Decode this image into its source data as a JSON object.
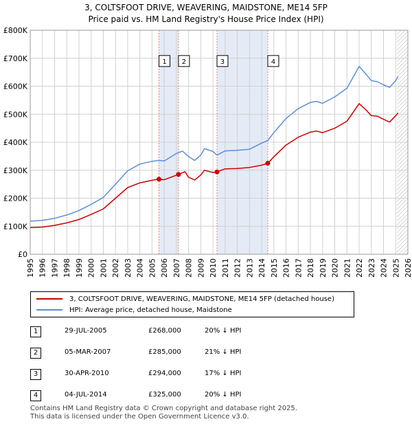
{
  "title_line1": "3, COLTSFOOT DRIVE, WEAVERING, MAIDSTONE, ME14 5FP",
  "title_line2": "Price paid vs. HM Land Registry's House Price Index (HPI)",
  "colors": {
    "property": "#cc0000",
    "hpi": "#5b8fd4",
    "band": "#e4ebf6",
    "grid": "#d0d0d0"
  },
  "chart_data": {
    "type": "line",
    "x_min": 1995,
    "x_max": 2026,
    "ylim": [
      0,
      800000
    ],
    "y_ticks": [
      {
        "value": 0,
        "label": "£0"
      },
      {
        "value": 100000,
        "label": "£100K"
      },
      {
        "value": 200000,
        "label": "£200K"
      },
      {
        "value": 300000,
        "label": "£300K"
      },
      {
        "value": 400000,
        "label": "£400K"
      },
      {
        "value": 500000,
        "label": "£500K"
      },
      {
        "value": 600000,
        "label": "£600K"
      },
      {
        "value": 700000,
        "label": "£700K"
      },
      {
        "value": 800000,
        "label": "£800K"
      }
    ],
    "x_ticks": [
      "1995",
      "1996",
      "1997",
      "1998",
      "1999",
      "2000",
      "2001",
      "2002",
      "2003",
      "2004",
      "2005",
      "2006",
      "2007",
      "2008",
      "2009",
      "2010",
      "2011",
      "2012",
      "2013",
      "2014",
      "2015",
      "2016",
      "2017",
      "2018",
      "2019",
      "2020",
      "2021",
      "2022",
      "2023",
      "2024",
      "2025",
      "2026"
    ],
    "shaded_ranges": [
      [
        2005.57,
        2007.17
      ],
      [
        2010.33,
        2014.5
      ]
    ],
    "future_from": 2025.1,
    "series": [
      {
        "name": "3, COLTSFOOT DRIVE, WEAVERING, MAIDSTONE, ME14 5FP (detached house)",
        "x": [
          1995,
          1996,
          1997,
          1998,
          1999,
          2000,
          2001,
          2002,
          2003,
          2004,
          2005,
          2005.57,
          2006,
          2007.17,
          2007.7,
          2008,
          2008.5,
          2009,
          2009.3,
          2010,
          2010.33,
          2011,
          2012,
          2013,
          2014,
          2014.5,
          2015,
          2016,
          2017,
          2018,
          2018.5,
          2019,
          2020,
          2021,
          2022,
          2022.5,
          2023,
          2023.5,
          2024,
          2024.5,
          2025,
          2025.2
        ],
        "y": [
          95000,
          97000,
          103000,
          112000,
          124000,
          142000,
          162000,
          200000,
          238000,
          255000,
          264000,
          268000,
          266000,
          285000,
          295000,
          275000,
          265000,
          283000,
          300000,
          292000,
          294000,
          305000,
          306000,
          310000,
          318000,
          325000,
          348000,
          390000,
          418000,
          436000,
          440000,
          434000,
          450000,
          475000,
          538000,
          518000,
          495000,
          493000,
          482000,
          472000,
          495000,
          505000
        ]
      },
      {
        "name": "HPI: Average price, detached house, Maidstone",
        "x": [
          1995,
          1996,
          1997,
          1998,
          1999,
          2000,
          2001,
          2002,
          2003,
          2004,
          2005,
          2005.57,
          2006,
          2007,
          2007.5,
          2008,
          2008.5,
          2009,
          2009.3,
          2010,
          2010.33,
          2011,
          2012,
          2013,
          2014,
          2014.5,
          2015,
          2016,
          2017,
          2018,
          2018.5,
          2019,
          2020,
          2021,
          2022,
          2022.5,
          2023,
          2023.5,
          2024,
          2024.5,
          2025,
          2025.2
        ],
        "y": [
          118000,
          121000,
          128000,
          140000,
          156000,
          178000,
          203000,
          250000,
          298000,
          322000,
          332000,
          335000,
          333000,
          360000,
          368000,
          349000,
          335000,
          354000,
          377000,
          367000,
          354000,
          369000,
          371000,
          375000,
          397000,
          406000,
          434000,
          485000,
          520000,
          542000,
          546000,
          539000,
          562000,
          593000,
          671000,
          646000,
          620000,
          616000,
          605000,
          596000,
          620000,
          635000
        ]
      }
    ],
    "sales": [
      {
        "num": "1",
        "x": 2005.57,
        "price": 268000
      },
      {
        "num": "2",
        "x": 2007.17,
        "price": 285000
      },
      {
        "num": "3",
        "x": 2010.33,
        "price": 294000
      },
      {
        "num": "4",
        "x": 2014.5,
        "price": 325000
      }
    ],
    "box_value": 690000
  },
  "legend": {
    "property": "3, COLTSFOOT DRIVE, WEAVERING, MAIDSTONE, ME14 5FP (detached house)",
    "hpi": "HPI: Average price, detached house, Maidstone"
  },
  "transactions": [
    {
      "num": "1",
      "date": "29-JUL-2005",
      "price": "£268,000",
      "hpi": "20% ↓ HPI"
    },
    {
      "num": "2",
      "date": "05-MAR-2007",
      "price": "£285,000",
      "hpi": "21% ↓ HPI"
    },
    {
      "num": "3",
      "date": "30-APR-2010",
      "price": "£294,000",
      "hpi": "17% ↓ HPI"
    },
    {
      "num": "4",
      "date": "04-JUL-2014",
      "price": "£325,000",
      "hpi": "20% ↓ HPI"
    }
  ],
  "footer": {
    "line1": "Contains HM Land Registry data © Crown copyright and database right 2025.",
    "line2": "This data is licensed under the Open Government Licence v3.0."
  }
}
